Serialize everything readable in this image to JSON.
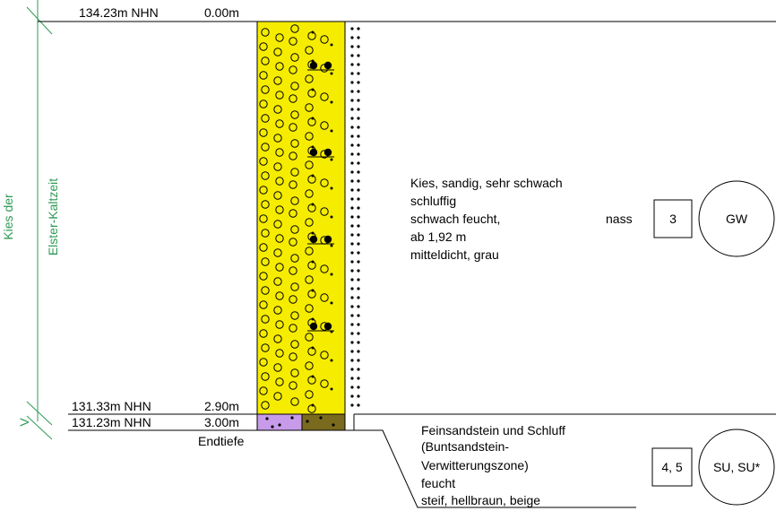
{
  "colors": {
    "stratigraphy": "#2e9a55",
    "gravel_fill": "#f5ec00",
    "sandstone_fill": "#c79be9",
    "silt_fill": "#7a6a1e",
    "line": "#000000"
  },
  "stratigraphy": {
    "unit_line1": "Kies der",
    "unit_line2": "Elster-Kaltzeit",
    "lower_marker": "V"
  },
  "levels": {
    "top": {
      "elevation": "134.23m NHN",
      "depth": "0.00m"
    },
    "layer_boundary": {
      "elevation": "131.33m NHN",
      "depth": "2.90m"
    },
    "bottom": {
      "elevation": "131.23m NHN",
      "depth": "3.00m",
      "label": "Endtiefe"
    }
  },
  "layers": [
    {
      "id": "gravel",
      "top_depth_m": 0.0,
      "bottom_depth_m": 2.9,
      "description": [
        "Kies, sandig, sehr schwach",
        "schluffig",
        "schwach feucht,",
        "ab 1,92 m",
        "mitteldicht, grau"
      ],
      "water_note": "nass",
      "class_code": "3",
      "soil_group": "GW"
    },
    {
      "id": "sandstone-silt",
      "top_depth_m": 2.9,
      "bottom_depth_m": 3.0,
      "description": [
        "Feinsandstein und Schluff",
        "(Buntsandstein-",
        "Verwitterungszone)",
        "feucht",
        "steif, hellbraun, beige"
      ],
      "class_code": "4, 5",
      "soil_group": "SU, SU*"
    }
  ]
}
